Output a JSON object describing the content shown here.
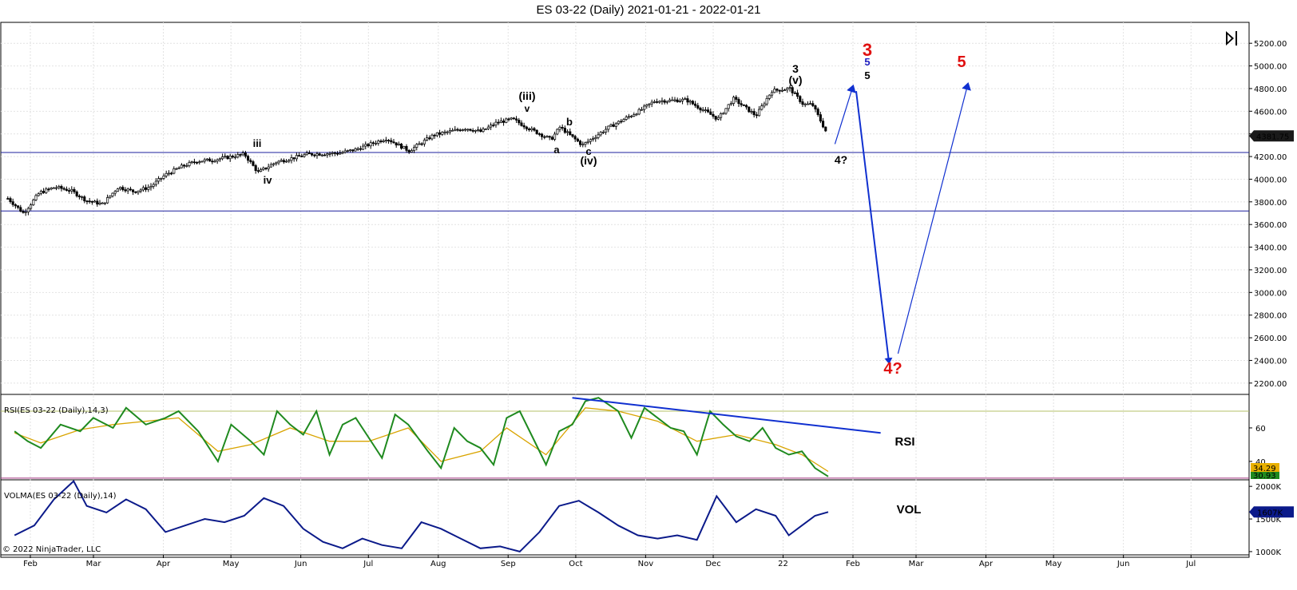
{
  "title": "ES 03-22 (Daily)  2021-01-21 - 2022-01-21",
  "copyright": "© 2022 NinjaTrader, LLC",
  "price_tag": "4381.75",
  "rsi_tag_top": "34.29",
  "rsi_tag_bottom": "30.93",
  "vol_tag": "1607K",
  "rsi_panel_label": "RSI(ES 03-22 (Daily),14,3)",
  "vol_panel_label": "VOLMA(ES 03-22 (Daily),14)",
  "rsi_big_label": "RSI",
  "vol_big_label": "VOL",
  "colors": {
    "candle": "#000000",
    "hline": "#1b1f9c",
    "rsi": "#1f8a1f",
    "rsi_avg": "#d9a400",
    "rsi_upper": "#b5c06a",
    "rsi_lower": "#a0307f",
    "vol": "#0b1a8a",
    "arrow": "#1030d0",
    "red_label": "#e01010"
  },
  "chart_data": [
    {
      "type": "candlestick",
      "title": "ES 03-22 (Daily)  2021-01-21 - 2022-01-21",
      "x_tick_labels": [
        "Feb",
        "Mar",
        "Apr",
        "May",
        "Jun",
        "Jul",
        "Aug",
        "Sep",
        "Oct",
        "Nov",
        "Dec",
        "22",
        "Feb",
        "Mar",
        "Apr",
        "May",
        "Jun",
        "Jul"
      ],
      "y_tick_labels": [
        "5200.00",
        "5000.00",
        "4800.00",
        "4600.00",
        "4400.00",
        "4200.00",
        "4000.00",
        "3800.00",
        "3600.00",
        "3400.00",
        "3200.00",
        "3000.00",
        "2800.00",
        "2600.00",
        "2400.00",
        "2200.00"
      ],
      "ylim": [
        2100,
        5300
      ],
      "last_price": 4381.75,
      "horizontal_lines": [
        4236,
        3719
      ],
      "close_path": [
        {
          "x": "2021-01-22",
          "y": 3830
        },
        {
          "x": "2021-01-29",
          "y": 3700
        },
        {
          "x": "2021-02-05",
          "y": 3880
        },
        {
          "x": "2021-02-12",
          "y": 3930
        },
        {
          "x": "2021-02-19",
          "y": 3900
        },
        {
          "x": "2021-02-26",
          "y": 3810
        },
        {
          "x": "2021-03-05",
          "y": 3780
        },
        {
          "x": "2021-03-12",
          "y": 3930
        },
        {
          "x": "2021-03-19",
          "y": 3890
        },
        {
          "x": "2021-03-26",
          "y": 3930
        },
        {
          "x": "2021-04-02",
          "y": 4040
        },
        {
          "x": "2021-04-09",
          "y": 4110
        },
        {
          "x": "2021-04-16",
          "y": 4160
        },
        {
          "x": "2021-04-23",
          "y": 4170
        },
        {
          "x": "2021-05-07",
          "y": 4220
        },
        {
          "x": "2021-05-13",
          "y": 4060
        },
        {
          "x": "2021-05-21",
          "y": 4150
        },
        {
          "x": "2021-06-04",
          "y": 4220
        },
        {
          "x": "2021-06-18",
          "y": 4230
        },
        {
          "x": "2021-06-25",
          "y": 4260
        },
        {
          "x": "2021-07-09",
          "y": 4360
        },
        {
          "x": "2021-07-19",
          "y": 4250
        },
        {
          "x": "2021-07-30",
          "y": 4390
        },
        {
          "x": "2021-08-13",
          "y": 4450
        },
        {
          "x": "2021-08-20",
          "y": 4420
        },
        {
          "x": "2021-08-27",
          "y": 4500
        },
        {
          "x": "2021-09-03",
          "y": 4530
        },
        {
          "x": "2021-09-10",
          "y": 4450
        },
        {
          "x": "2021-09-20",
          "y": 4350
        },
        {
          "x": "2021-09-24",
          "y": 4460
        },
        {
          "x": "2021-10-04",
          "y": 4300
        },
        {
          "x": "2021-10-15",
          "y": 4450
        },
        {
          "x": "2021-10-29",
          "y": 4600
        },
        {
          "x": "2021-11-05",
          "y": 4690
        },
        {
          "x": "2021-11-19",
          "y": 4700
        },
        {
          "x": "2021-11-30",
          "y": 4570
        },
        {
          "x": "2021-12-03",
          "y": 4530
        },
        {
          "x": "2021-12-10",
          "y": 4710
        },
        {
          "x": "2021-12-20",
          "y": 4560
        },
        {
          "x": "2021-12-27",
          "y": 4780
        },
        {
          "x": "2022-01-04",
          "y": 4800
        },
        {
          "x": "2022-01-10",
          "y": 4660
        },
        {
          "x": "2022-01-14",
          "y": 4660
        },
        {
          "x": "2022-01-21",
          "y": 4382
        }
      ],
      "projection": [
        {
          "x": "2022-01-24",
          "y": 4310
        },
        {
          "x": "2022-02-01",
          "y": 4820
        },
        {
          "x": "2022-02-17",
          "y": 2380
        },
        {
          "x": "2022-02-21",
          "y": 2460
        },
        {
          "x": "2022-03-24",
          "y": 4840
        }
      ],
      "annotations": [
        {
          "text": "iii",
          "color": "black"
        },
        {
          "text": "iv",
          "color": "black"
        },
        {
          "text": "(iii)",
          "color": "black"
        },
        {
          "text": "v",
          "color": "black"
        },
        {
          "text": "a",
          "color": "black"
        },
        {
          "text": "b",
          "color": "black"
        },
        {
          "text": "c",
          "color": "black"
        },
        {
          "text": "(iv)",
          "color": "black"
        },
        {
          "text": "3",
          "color": "black"
        },
        {
          "text": "(v)",
          "color": "black"
        },
        {
          "text": "4?",
          "color": "black"
        },
        {
          "text": "3",
          "color": "red"
        },
        {
          "text": "5",
          "color": "blue"
        },
        {
          "text": "5",
          "color": "black"
        },
        {
          "text": "5",
          "color": "red"
        },
        {
          "text": "4?",
          "color": "red"
        }
      ]
    },
    {
      "type": "line",
      "title": "RSI(ES 03-22 (Daily),14,3)",
      "y_tick_labels": [
        "60",
        "40"
      ],
      "ylim": [
        29,
        80
      ],
      "upper_line": 70,
      "lower_line": 30,
      "series": [
        {
          "name": "RSI(ES 03-22 (Daily),14,3)",
          "x": [
            0,
            4,
            8,
            14,
            20,
            24,
            30,
            34,
            40,
            46,
            50,
            56,
            62,
            66,
            72,
            76,
            80,
            84,
            88,
            92,
            96,
            100,
            104,
            108,
            112,
            116,
            120,
            126,
            130,
            134,
            138,
            142,
            146,
            150,
            154,
            158,
            162,
            166,
            170,
            174,
            178,
            184,
            188,
            192,
            196,
            200,
            204,
            208,
            212,
            216,
            220,
            224,
            228,
            232,
            236,
            240,
            244,
            248
          ],
          "values": [
            58,
            52,
            48,
            62,
            58,
            66,
            60,
            72,
            62,
            66,
            70,
            58,
            40,
            62,
            52,
            44,
            70,
            62,
            56,
            70,
            44,
            62,
            66,
            54,
            42,
            68,
            62,
            46,
            36,
            60,
            52,
            48,
            38,
            66,
            70,
            54,
            38,
            58,
            62,
            76,
            78,
            70,
            54,
            72,
            66,
            60,
            58,
            44,
            70,
            62,
            55,
            52,
            60,
            48,
            44,
            46,
            36,
            31
          ]
        },
        {
          "name": "RSI average",
          "x": [
            0,
            8,
            20,
            30,
            40,
            50,
            62,
            72,
            84,
            96,
            108,
            120,
            130,
            142,
            150,
            162,
            174,
            184,
            196,
            208,
            220,
            232,
            240,
            248
          ],
          "values": [
            57,
            51,
            59,
            62,
            64,
            66,
            46,
            50,
            60,
            52,
            52,
            60,
            40,
            46,
            60,
            44,
            72,
            70,
            64,
            52,
            56,
            50,
            44,
            34
          ]
        }
      ],
      "trendline": [
        {
          "x": 170,
          "y": 78
        },
        {
          "x": 264,
          "y": 57
        }
      ]
    },
    {
      "type": "line",
      "title": "VOLMA(ES 03-22 (Daily),14)",
      "y_tick_labels": [
        "2000K",
        "1500K",
        "1000K"
      ],
      "ylim": [
        950,
        2100
      ],
      "series": [
        {
          "name": "VOLMA(ES 03-22 (Daily),14)",
          "x": [
            0,
            6,
            12,
            18,
            22,
            28,
            34,
            40,
            46,
            52,
            58,
            64,
            70,
            76,
            82,
            88,
            94,
            100,
            106,
            112,
            118,
            124,
            130,
            136,
            142,
            148,
            154,
            160,
            166,
            172,
            178,
            184,
            190,
            196,
            202,
            208,
            214,
            220,
            226,
            232,
            236,
            240,
            244,
            248
          ],
          "values": [
            1250,
            1400,
            1800,
            2080,
            1700,
            1600,
            1800,
            1650,
            1300,
            1400,
            1500,
            1450,
            1550,
            1820,
            1700,
            1350,
            1150,
            1050,
            1200,
            1100,
            1050,
            1450,
            1350,
            1200,
            1050,
            1080,
            1000,
            1300,
            1700,
            1780,
            1600,
            1400,
            1250,
            1200,
            1250,
            1180,
            1850,
            1450,
            1650,
            1550,
            1250,
            1400,
            1550,
            1607
          ]
        }
      ]
    }
  ]
}
